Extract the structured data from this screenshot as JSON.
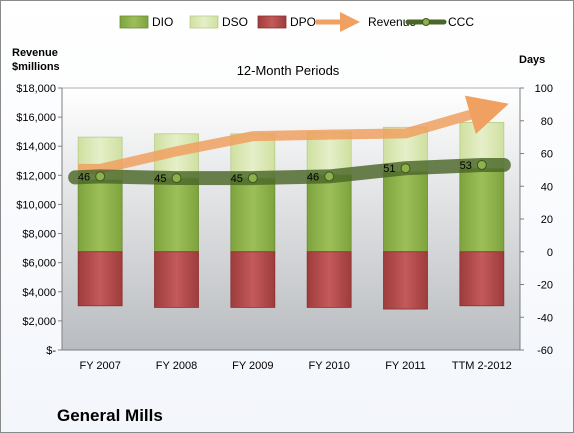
{
  "chart_data": {
    "type": "bar",
    "title": "12-Month Periods",
    "company": "General Mills",
    "left_axis": {
      "label_line1": "Revenue",
      "label_line2": "$millions",
      "ylim": [
        0,
        18000
      ],
      "ticks": [
        0,
        2000,
        4000,
        6000,
        8000,
        10000,
        12000,
        14000,
        16000,
        18000
      ],
      "tick_labels": [
        "$-",
        "$2,000",
        "$4,000",
        "$6,000",
        "$8,000",
        "$10,000",
        "$12,000",
        "$14,000",
        "$16,000",
        "$18,000"
      ]
    },
    "right_axis": {
      "label": "Days",
      "ylim": [
        -60,
        100
      ],
      "ticks": [
        -60,
        -40,
        -20,
        0,
        20,
        40,
        60,
        80,
        100
      ],
      "tick_labels": [
        "-60",
        "-40",
        "-20",
        "0",
        "20",
        "40",
        "60",
        "80",
        "100"
      ]
    },
    "categories": [
      "FY 2007",
      "FY 2008",
      "FY 2009",
      "FY 2010",
      "FY 2011",
      "TTM 2-2012"
    ],
    "series": [
      {
        "name": "DIO",
        "axis": "right",
        "kind": "stacked-bar",
        "values": [
          44,
          45,
          45,
          47,
          49,
          51
        ],
        "color": "#8db04a"
      },
      {
        "name": "DSO",
        "axis": "right",
        "kind": "stacked-bar",
        "values": [
          26,
          27,
          27,
          26,
          27,
          28
        ],
        "color": "#d7e6b0"
      },
      {
        "name": "DPO",
        "axis": "right",
        "kind": "negative-bar",
        "values": [
          -33,
          -34,
          -34,
          -34,
          -35,
          -33
        ],
        "color": "#b04a4a"
      },
      {
        "name": "Revenue",
        "axis": "left",
        "kind": "arrow-line",
        "values": [
          12442,
          13652,
          14691,
          14797,
          14880,
          16387
        ],
        "color": "#f0a868"
      },
      {
        "name": "CCC",
        "axis": "right",
        "kind": "line-markers",
        "values": [
          46,
          45,
          45,
          46,
          51,
          53
        ],
        "color": "#4f6b2a"
      }
    ],
    "data_labels": [
      "46",
      "45",
      "45",
      "46",
      "51",
      "53"
    ],
    "grid": false,
    "legend_position": "top"
  }
}
